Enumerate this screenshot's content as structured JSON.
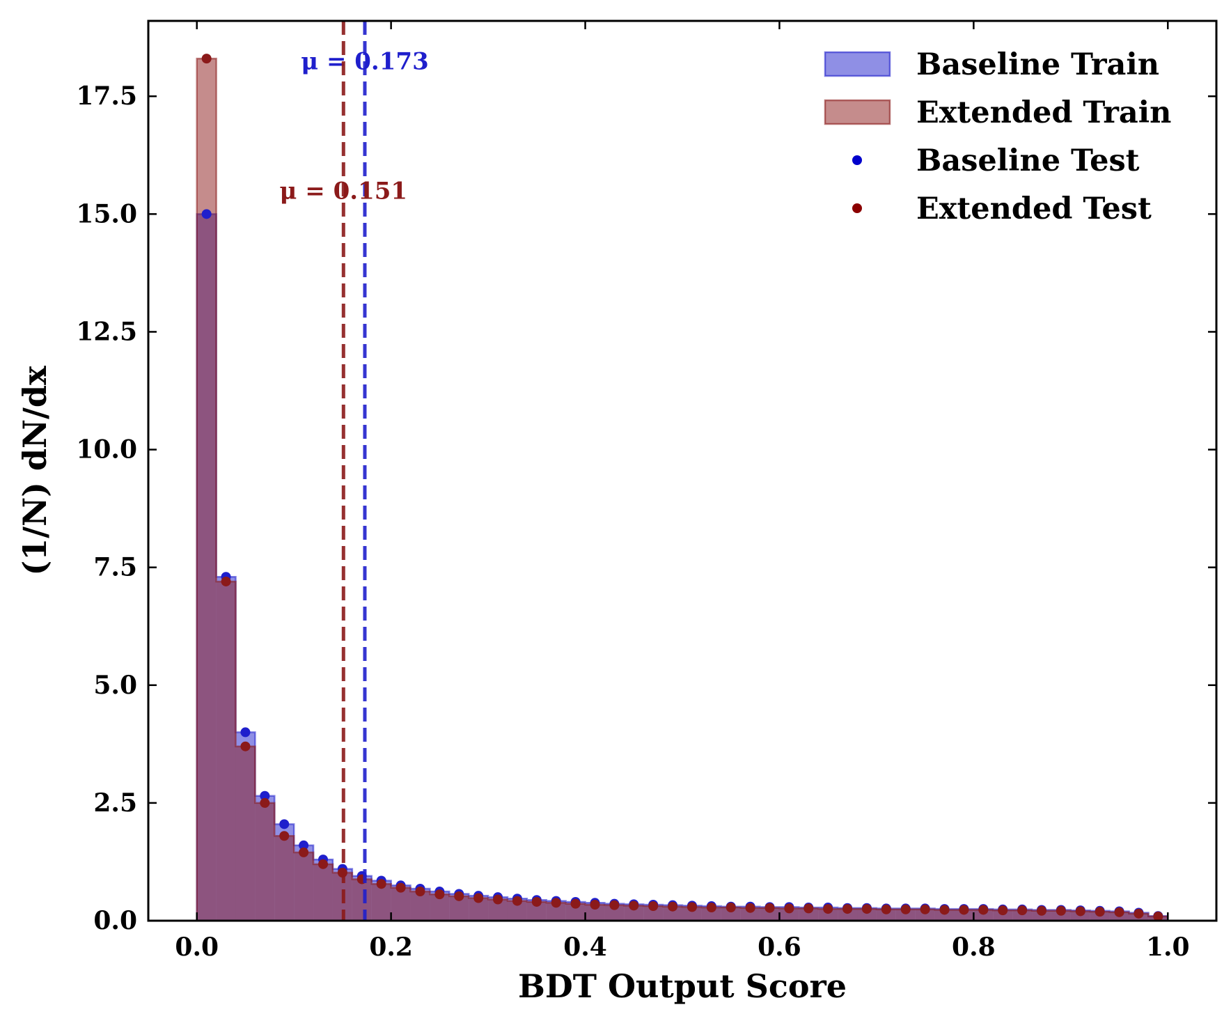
{
  "chart_data": {
    "type": "bar",
    "title": "",
    "xlabel": "BDT Output Score",
    "ylabel": "(1/N) dN/dx",
    "xlim": [
      -0.05,
      1.05
    ],
    "ylim": [
      0,
      19.1
    ],
    "xticks": [
      0.0,
      0.2,
      0.4,
      0.6,
      0.8,
      1.0
    ],
    "xtick_labels": [
      "0.0",
      "0.2",
      "0.4",
      "0.6",
      "0.8",
      "1.0"
    ],
    "yticks": [
      0,
      2.5,
      5,
      7.5,
      10,
      12.5,
      15,
      17.5
    ],
    "ytick_labels": [
      "0.0",
      "2.5",
      "5.0",
      "7.5",
      "10.0",
      "12.5",
      "15.0",
      "17.5"
    ],
    "bin_edges": [
      0.0,
      0.02,
      0.04,
      0.06,
      0.08,
      0.1,
      0.12,
      0.14,
      0.16,
      0.18,
      0.2,
      0.22,
      0.24,
      0.26,
      0.28,
      0.3,
      0.32,
      0.34,
      0.36,
      0.38,
      0.4,
      0.42,
      0.44,
      0.46,
      0.48,
      0.5,
      0.52,
      0.54,
      0.56,
      0.58,
      0.6,
      0.62,
      0.64,
      0.66,
      0.68,
      0.7,
      0.72,
      0.74,
      0.76,
      0.78,
      0.8,
      0.82,
      0.84,
      0.86,
      0.88,
      0.9,
      0.92,
      0.94,
      0.96,
      0.98,
      1.0
    ],
    "series": [
      {
        "name": "Baseline Train",
        "kind": "histogram",
        "color": "#1f1fcc",
        "values": [
          15.0,
          7.3,
          4.0,
          2.65,
          2.05,
          1.6,
          1.3,
          1.1,
          0.95,
          0.85,
          0.75,
          0.68,
          0.62,
          0.57,
          0.53,
          0.5,
          0.47,
          0.44,
          0.42,
          0.4,
          0.38,
          0.36,
          0.35,
          0.34,
          0.33,
          0.32,
          0.31,
          0.3,
          0.3,
          0.29,
          0.29,
          0.28,
          0.28,
          0.27,
          0.27,
          0.26,
          0.26,
          0.26,
          0.25,
          0.25,
          0.25,
          0.24,
          0.24,
          0.23,
          0.23,
          0.22,
          0.21,
          0.2,
          0.17,
          0.1
        ]
      },
      {
        "name": "Extended Train",
        "kind": "histogram",
        "color": "#8b1a1a",
        "values": [
          18.3,
          7.2,
          3.7,
          2.5,
          1.8,
          1.45,
          1.2,
          1.02,
          0.88,
          0.78,
          0.7,
          0.62,
          0.56,
          0.52,
          0.48,
          0.45,
          0.42,
          0.4,
          0.38,
          0.36,
          0.34,
          0.33,
          0.32,
          0.31,
          0.3,
          0.29,
          0.28,
          0.28,
          0.27,
          0.27,
          0.26,
          0.26,
          0.25,
          0.25,
          0.25,
          0.24,
          0.24,
          0.24,
          0.23,
          0.23,
          0.23,
          0.22,
          0.22,
          0.21,
          0.21,
          0.2,
          0.19,
          0.18,
          0.15,
          0.09
        ]
      },
      {
        "name": "Baseline Test",
        "kind": "points",
        "color": "#0000cc",
        "values": [
          14.9,
          7.2,
          4.0,
          2.7,
          2.02,
          1.63,
          1.35,
          1.12,
          0.98,
          0.88,
          0.78,
          0.69,
          0.63,
          0.58,
          0.55,
          0.52,
          0.48,
          0.46,
          0.42,
          0.4,
          0.4,
          0.37,
          0.38,
          0.34,
          0.36,
          0.32,
          0.31,
          0.3,
          0.31,
          0.29,
          0.3,
          0.29,
          0.3,
          0.27,
          0.27,
          0.26,
          0.27,
          0.27,
          0.26,
          0.26,
          0.25,
          0.26,
          0.26,
          0.24,
          0.24,
          0.23,
          0.21,
          0.2,
          0.17,
          0.1
        ]
      },
      {
        "name": "Extended Test",
        "kind": "points",
        "color": "#8b0000",
        "values": [
          18.2,
          7.0,
          3.8,
          2.55,
          1.78,
          1.45,
          1.22,
          1.02,
          0.85,
          0.77,
          0.7,
          0.6,
          0.55,
          0.52,
          0.5,
          0.46,
          0.44,
          0.4,
          0.36,
          0.34,
          0.37,
          0.32,
          0.31,
          0.32,
          0.3,
          0.29,
          0.29,
          0.28,
          0.27,
          0.27,
          0.26,
          0.25,
          0.26,
          0.25,
          0.25,
          0.25,
          0.25,
          0.24,
          0.24,
          0.22,
          0.23,
          0.22,
          0.22,
          0.2,
          0.21,
          0.19,
          0.17,
          0.16,
          0.17,
          0.1
        ]
      }
    ],
    "mean_lines": [
      {
        "value": 0.173,
        "label": "μ = 0.173",
        "color": "#1f1fcc",
        "label_y": 18.25
      },
      {
        "value": 0.151,
        "label": "μ = 0.151",
        "color": "#8b1a1a",
        "label_y": 15.5
      }
    ],
    "legend": {
      "placement": "top-right",
      "entries": [
        {
          "label": "Baseline Train",
          "kind": "patch",
          "color": "#1f1fcc"
        },
        {
          "label": "Extended Train",
          "kind": "patch",
          "color": "#8b1a1a"
        },
        {
          "label": "Baseline Test",
          "kind": "point",
          "color": "#0000cc"
        },
        {
          "label": "Extended Test",
          "kind": "point",
          "color": "#8b0000"
        }
      ]
    },
    "grid": false
  }
}
